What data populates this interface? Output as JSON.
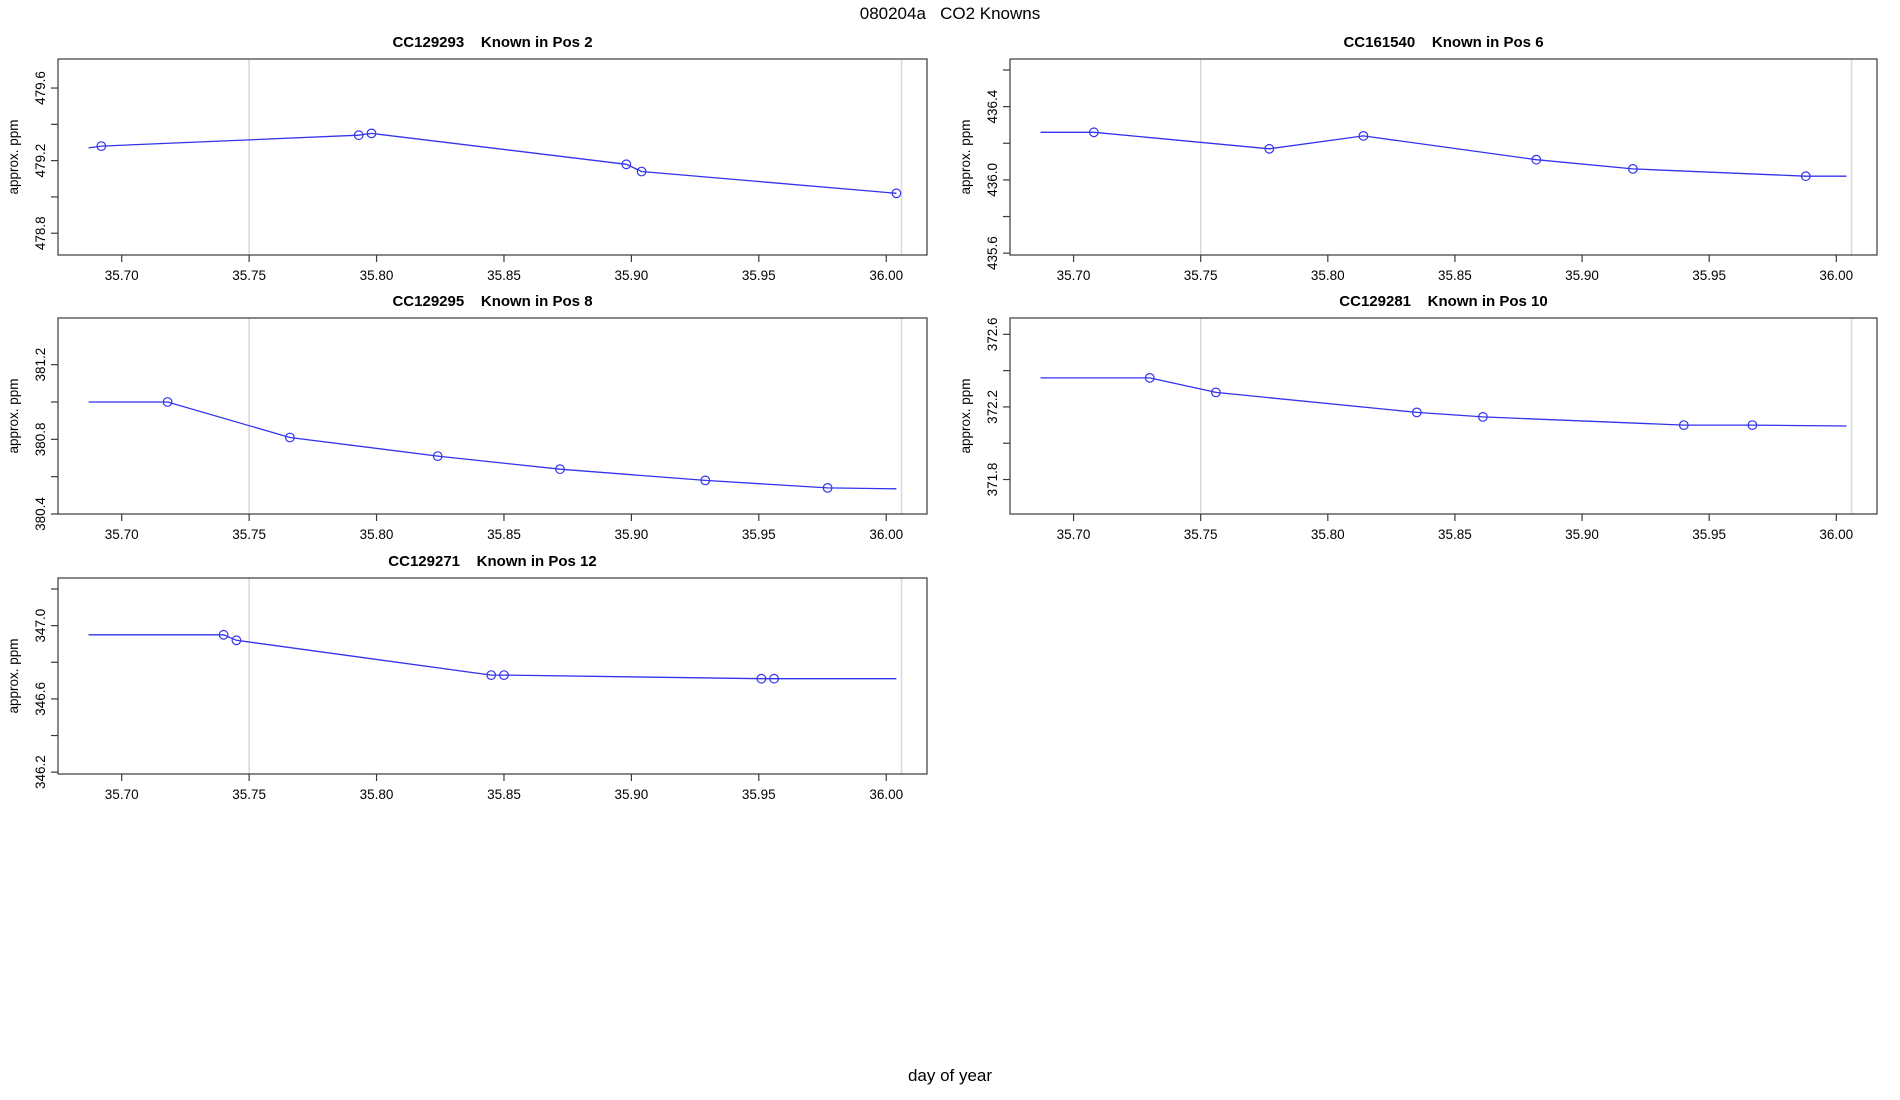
{
  "figure": {
    "title": "080204a   CO2 Knowns",
    "x_axis_label": "day of year",
    "y_axis_label": "approx. ppm",
    "colors": {
      "series_blue": "#3333ee",
      "guide_gray": "#d8d8d8",
      "axis_black": "#3a3a3a",
      "background": "#ffffff"
    }
  },
  "chart_data": [
    {
      "type": "line",
      "sample_id": "CC129293",
      "position_label": "Known in Pos 2",
      "title": "CC129293    Known in Pos 2",
      "xlabel": "day of year",
      "ylabel": "approx. ppm",
      "xlim": [
        35.675,
        36.016
      ],
      "ylim": [
        478.68,
        479.76
      ],
      "xticks": [
        35.7,
        35.75,
        35.8,
        35.85,
        35.9,
        35.95,
        36.0
      ],
      "yticks": [
        {
          "value": 479.6,
          "label": "479.6"
        },
        {
          "value": 479.4,
          "label": null
        },
        {
          "value": 479.2,
          "label": "479.2"
        },
        {
          "value": 479.0,
          "label": null
        },
        {
          "value": 478.8,
          "label": "478.8"
        }
      ],
      "vlines": [
        35.75,
        36.006
      ],
      "grid": "off",
      "legend": "none",
      "points": [
        [
          35.692,
          479.28
        ],
        [
          35.793,
          479.34
        ],
        [
          35.798,
          479.35
        ],
        [
          35.898,
          479.18
        ],
        [
          35.904,
          479.14
        ],
        [
          36.004,
          479.02
        ]
      ],
      "line": [
        [
          35.687,
          479.27
        ],
        [
          35.692,
          479.28
        ],
        [
          35.793,
          479.34
        ],
        [
          35.798,
          479.35
        ],
        [
          35.898,
          479.18
        ],
        [
          35.904,
          479.14
        ],
        [
          36.004,
          479.02
        ]
      ]
    },
    {
      "type": "line",
      "sample_id": "CC161540",
      "position_label": "Known in Pos 6",
      "title": "CC161540    Known in Pos 6",
      "xlabel": "day of year",
      "ylabel": "approx. ppm",
      "xlim": [
        35.675,
        36.016
      ],
      "ylim": [
        435.59,
        436.66
      ],
      "xticks": [
        35.7,
        35.75,
        35.8,
        35.85,
        35.9,
        35.95,
        36.0
      ],
      "yticks": [
        {
          "value": 436.6,
          "label": null
        },
        {
          "value": 436.4,
          "label": "436.4"
        },
        {
          "value": 436.2,
          "label": null
        },
        {
          "value": 436.0,
          "label": "436.0"
        },
        {
          "value": 435.8,
          "label": null
        },
        {
          "value": 435.6,
          "label": "435.6"
        }
      ],
      "vlines": [
        35.75,
        36.006
      ],
      "grid": "off",
      "legend": "none",
      "points": [
        [
          35.708,
          436.26
        ],
        [
          35.777,
          436.17
        ],
        [
          35.814,
          436.24
        ],
        [
          35.882,
          436.11
        ],
        [
          35.92,
          436.06
        ],
        [
          35.988,
          436.02
        ]
      ],
      "line": [
        [
          35.687,
          436.26
        ],
        [
          35.708,
          436.26
        ],
        [
          35.777,
          436.17
        ],
        [
          35.814,
          436.24
        ],
        [
          35.882,
          436.11
        ],
        [
          35.92,
          436.06
        ],
        [
          35.988,
          436.02
        ],
        [
          36.004,
          436.02
        ]
      ]
    },
    {
      "type": "line",
      "sample_id": "CC129295",
      "position_label": "Known in Pos 8",
      "title": "CC129295    Known in Pos 8",
      "xlabel": "day of year",
      "ylabel": "approx. ppm",
      "xlim": [
        35.675,
        36.016
      ],
      "ylim": [
        380.4,
        381.45
      ],
      "xticks": [
        35.7,
        35.75,
        35.8,
        35.85,
        35.9,
        35.95,
        36.0
      ],
      "yticks": [
        {
          "value": 381.2,
          "label": "381.2"
        },
        {
          "value": 381.0,
          "label": null
        },
        {
          "value": 380.8,
          "label": "380.8"
        },
        {
          "value": 380.6,
          "label": null
        },
        {
          "value": 380.4,
          "label": "380.4"
        }
      ],
      "vlines": [
        35.75,
        36.006
      ],
      "grid": "off",
      "legend": "none",
      "points": [
        [
          35.718,
          381.0
        ],
        [
          35.766,
          380.81
        ],
        [
          35.824,
          380.71
        ],
        [
          35.872,
          380.64
        ],
        [
          35.929,
          380.58
        ],
        [
          35.977,
          380.54
        ]
      ],
      "line": [
        [
          35.687,
          381.0
        ],
        [
          35.718,
          381.0
        ],
        [
          35.766,
          380.81
        ],
        [
          35.824,
          380.71
        ],
        [
          35.872,
          380.64
        ],
        [
          35.929,
          380.58
        ],
        [
          35.977,
          380.54
        ],
        [
          36.004,
          380.535
        ]
      ]
    },
    {
      "type": "line",
      "sample_id": "CC129281",
      "position_label": "Known in Pos 10",
      "title": "CC129281    Known in Pos 10",
      "xlabel": "day of year",
      "ylabel": "approx. ppm",
      "xlim": [
        35.675,
        36.016
      ],
      "ylim": [
        371.61,
        372.69
      ],
      "xticks": [
        35.7,
        35.75,
        35.8,
        35.85,
        35.9,
        35.95,
        36.0
      ],
      "yticks": [
        {
          "value": 372.6,
          "label": "372.6"
        },
        {
          "value": 372.4,
          "label": null
        },
        {
          "value": 372.2,
          "label": "372.2"
        },
        {
          "value": 372.0,
          "label": null
        },
        {
          "value": 371.8,
          "label": "371.8"
        }
      ],
      "vlines": [
        35.75,
        36.006
      ],
      "grid": "off",
      "legend": "none",
      "points": [
        [
          35.73,
          372.36
        ],
        [
          35.756,
          372.28
        ],
        [
          35.835,
          372.17
        ],
        [
          35.861,
          372.145
        ],
        [
          35.94,
          372.1
        ],
        [
          35.967,
          372.1
        ]
      ],
      "line": [
        [
          35.687,
          372.36
        ],
        [
          35.73,
          372.36
        ],
        [
          35.756,
          372.28
        ],
        [
          35.835,
          372.17
        ],
        [
          35.861,
          372.145
        ],
        [
          35.94,
          372.1
        ],
        [
          35.967,
          372.1
        ],
        [
          36.004,
          372.095
        ]
      ]
    },
    {
      "type": "line",
      "sample_id": "CC129271",
      "position_label": "Known in Pos 12",
      "title": "CC129271    Known in Pos 12",
      "xlabel": "day of year",
      "ylabel": "approx. ppm",
      "xlim": [
        35.675,
        36.016
      ],
      "ylim": [
        346.19,
        347.26
      ],
      "xticks": [
        35.7,
        35.75,
        35.8,
        35.85,
        35.9,
        35.95,
        36.0
      ],
      "yticks": [
        {
          "value": 347.2,
          "label": null
        },
        {
          "value": 347.0,
          "label": "347.0"
        },
        {
          "value": 346.8,
          "label": null
        },
        {
          "value": 346.6,
          "label": "346.6"
        },
        {
          "value": 346.4,
          "label": null
        },
        {
          "value": 346.2,
          "label": "346.2"
        }
      ],
      "vlines": [
        35.75,
        36.006
      ],
      "grid": "off",
      "legend": "none",
      "points": [
        [
          35.74,
          346.95
        ],
        [
          35.745,
          346.92
        ],
        [
          35.845,
          346.73
        ],
        [
          35.85,
          346.73
        ],
        [
          35.951,
          346.71
        ],
        [
          35.956,
          346.71
        ]
      ],
      "line": [
        [
          35.687,
          346.95
        ],
        [
          35.74,
          346.95
        ],
        [
          35.745,
          346.92
        ],
        [
          35.845,
          346.73
        ],
        [
          35.85,
          346.73
        ],
        [
          35.951,
          346.71
        ],
        [
          35.956,
          346.71
        ],
        [
          36.004,
          346.71
        ]
      ]
    }
  ]
}
